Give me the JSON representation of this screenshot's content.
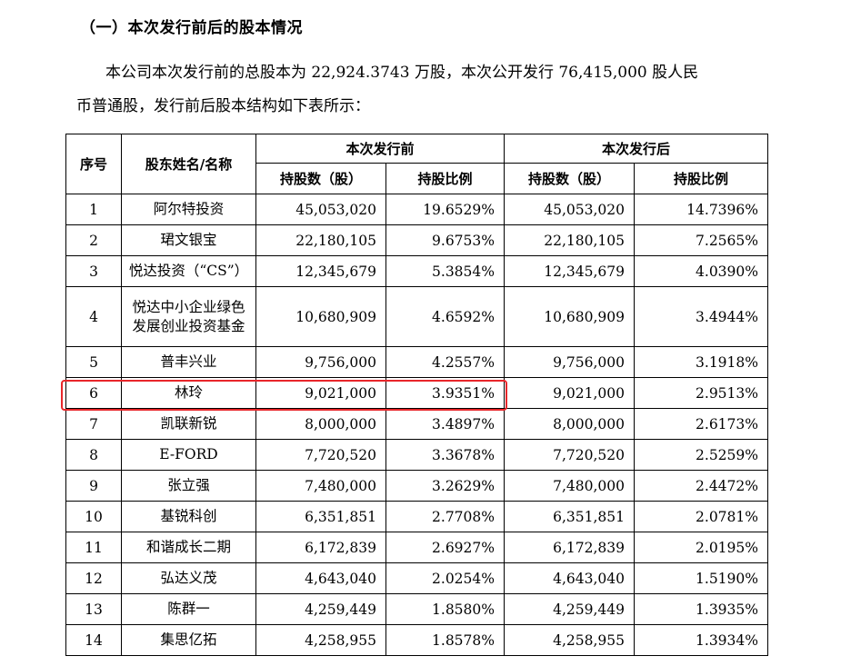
{
  "section_title": "（一）本次发行前后的股本情况",
  "paragraph": {
    "line1": "本公司本次发行前的总股本为 22,924.3743 万股，本次公开发行 76,415,000 股人民",
    "line2": "币普通股，发行前后股本结构如下表所示："
  },
  "table": {
    "headers": {
      "seq": "序号",
      "name": "股东姓名/名称",
      "before": "本次发行前",
      "after": "本次发行后",
      "shares": "持股数（股）",
      "ratio": "持股比例",
      "shares2": "持股数（股）",
      "ratio2": "持股比例"
    },
    "rows": [
      {
        "seq": "1",
        "name": "阿尔特投资",
        "before_shares": "45,053,020",
        "before_ratio": "19.6529%",
        "after_shares": "45,053,020",
        "after_ratio": "14.7396%"
      },
      {
        "seq": "2",
        "name": "珺文银宝",
        "before_shares": "22,180,105",
        "before_ratio": "9.6753%",
        "after_shares": "22,180,105",
        "after_ratio": "7.2565%"
      },
      {
        "seq": "3",
        "name": "悦达投资（“CS”）",
        "before_shares": "12,345,679",
        "before_ratio": "5.3854%",
        "after_shares": "12,345,679",
        "after_ratio": "4.0390%"
      },
      {
        "seq": "4",
        "name": "悦达中小企业绿色发展创业投资基金",
        "before_shares": "10,680,909",
        "before_ratio": "4.6592%",
        "after_shares": "10,680,909",
        "after_ratio": "3.4944%"
      },
      {
        "seq": "5",
        "name": "普丰兴业",
        "before_shares": "9,756,000",
        "before_ratio": "4.2557%",
        "after_shares": "9,756,000",
        "after_ratio": "3.1918%"
      },
      {
        "seq": "6",
        "name": "林玲",
        "before_shares": "9,021,000",
        "before_ratio": "3.9351%",
        "after_shares": "9,021,000",
        "after_ratio": "2.9513%"
      },
      {
        "seq": "7",
        "name": "凯联新锐",
        "before_shares": "8,000,000",
        "before_ratio": "3.4897%",
        "after_shares": "8,000,000",
        "after_ratio": "2.6173%"
      },
      {
        "seq": "8",
        "name": "E-FORD",
        "before_shares": "7,720,520",
        "before_ratio": "3.3678%",
        "after_shares": "7,720,520",
        "after_ratio": "2.5259%"
      },
      {
        "seq": "9",
        "name": "张立强",
        "before_shares": "7,480,000",
        "before_ratio": "3.2629%",
        "after_shares": "7,480,000",
        "after_ratio": "2.4472%"
      },
      {
        "seq": "10",
        "name": "基锐科创",
        "before_shares": "6,351,851",
        "before_ratio": "2.7708%",
        "after_shares": "6,351,851",
        "after_ratio": "2.0781%"
      },
      {
        "seq": "11",
        "name": "和谐成长二期",
        "before_shares": "6,172,839",
        "before_ratio": "2.6927%",
        "after_shares": "6,172,839",
        "after_ratio": "2.0195%"
      },
      {
        "seq": "12",
        "name": "弘达义茂",
        "before_shares": "4,643,040",
        "before_ratio": "2.0254%",
        "after_shares": "4,643,040",
        "after_ratio": "1.5190%"
      },
      {
        "seq": "13",
        "name": "陈群一",
        "before_shares": "4,259,449",
        "before_ratio": "1.8580%",
        "after_shares": "4,259,449",
        "after_ratio": "1.3935%"
      },
      {
        "seq": "14",
        "name": "集思亿拓",
        "before_shares": "4,258,955",
        "before_ratio": "1.8578%",
        "after_shares": "4,258,955",
        "after_ratio": "1.3934%"
      }
    ]
  },
  "colors": {
    "highlight": "#e8262a"
  }
}
